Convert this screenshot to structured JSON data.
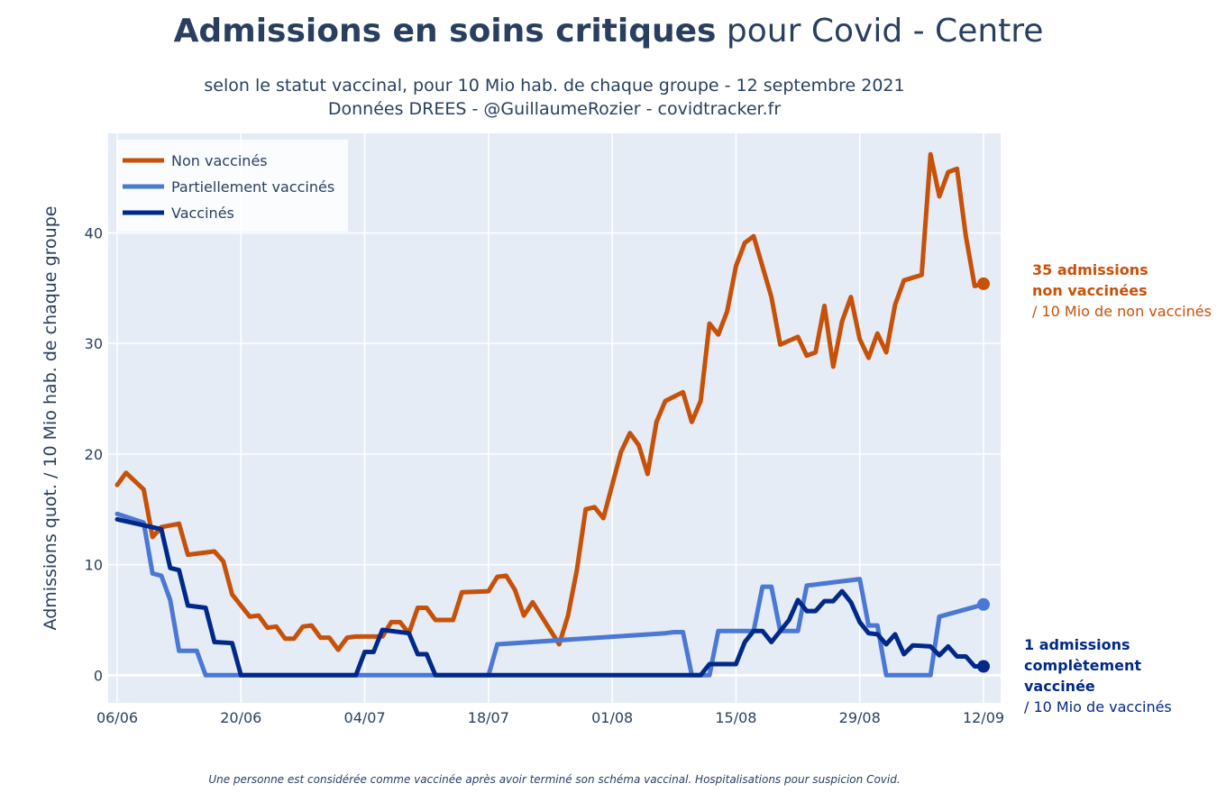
{
  "title": {
    "bold": "Admissions en soins critiques",
    "normal": "pour Covid - Centre"
  },
  "subtitle": [
    "selon le statut vaccinal, pour 10 Mio hab. de chaque groupe - 12 septembre 2021",
    "Données DREES - @GuillaumeRozier - covidtracker.fr"
  ],
  "footnote": "Une personne est considérée comme vaccinée après avoir terminé son schéma vaccinal. Hospitalisations pour suspicion Covid.",
  "annotations": {
    "non_vaccinated": {
      "line1": "35 admissions",
      "line2": "non vaccinées",
      "line3": "/ 10 Mio de non vaccinés"
    },
    "vaccinated": {
      "line1": "1 admissions",
      "line2": "complètement vaccinée",
      "line3": "/ 10 Mio de vaccinés"
    }
  },
  "colors": {
    "non_vaccinated": "#c75109",
    "partial": "#4a78d4",
    "vaccinated": "#00298a",
    "plot_bg": "#e5ecf6",
    "text": "#2a3f5f"
  },
  "chart_data": {
    "type": "line",
    "title": "Admissions en soins critiques pour Covid - Centre",
    "ylabel": "Admissions quot. / 10 Mio hab. de chaque groupe",
    "xlabel": "",
    "ylim": [
      -2.5,
      49
    ],
    "yticks": [
      0,
      10,
      20,
      30,
      40
    ],
    "x_start": "06/06",
    "xticks": [
      "06/06",
      "20/06",
      "04/07",
      "18/07",
      "01/08",
      "15/08",
      "29/08",
      "12/09"
    ],
    "xtick_days": [
      0,
      14,
      28,
      42,
      56,
      70,
      84,
      98
    ],
    "grid": true,
    "legend_position": "top-left",
    "series": [
      {
        "name": "Non vaccinés",
        "color": "#c75109",
        "points": [
          [
            0,
            17.2
          ],
          [
            1,
            18.3
          ],
          [
            3,
            16.8
          ],
          [
            4,
            12.5
          ],
          [
            5,
            13.4
          ],
          [
            7,
            13.7
          ],
          [
            8,
            10.9
          ],
          [
            11,
            11.2
          ],
          [
            12,
            10.3
          ],
          [
            13,
            7.3
          ],
          [
            15,
            5.3
          ],
          [
            16,
            5.4
          ],
          [
            17,
            4.3
          ],
          [
            18,
            4.4
          ],
          [
            19,
            3.3
          ],
          [
            20,
            3.3
          ],
          [
            21,
            4.4
          ],
          [
            22,
            4.5
          ],
          [
            23,
            3.4
          ],
          [
            24,
            3.4
          ],
          [
            25,
            2.3
          ],
          [
            26,
            3.4
          ],
          [
            27,
            3.5
          ],
          [
            30,
            3.5
          ],
          [
            31,
            4.8
          ],
          [
            32,
            4.8
          ],
          [
            33,
            3.8
          ],
          [
            34,
            6.1
          ],
          [
            35,
            6.1
          ],
          [
            36,
            5.0
          ],
          [
            38,
            5.0
          ],
          [
            39,
            7.5
          ],
          [
            42,
            7.6
          ],
          [
            43,
            8.9
          ],
          [
            44,
            9.0
          ],
          [
            45,
            7.7
          ],
          [
            46,
            5.4
          ],
          [
            47,
            6.6
          ],
          [
            50,
            2.8
          ],
          [
            51,
            5.4
          ],
          [
            52,
            9.5
          ],
          [
            53,
            15.0
          ],
          [
            54,
            15.2
          ],
          [
            55,
            14.2
          ],
          [
            56,
            17.2
          ],
          [
            57,
            20.2
          ],
          [
            58,
            21.9
          ],
          [
            59,
            20.8
          ],
          [
            60,
            18.2
          ],
          [
            61,
            22.9
          ],
          [
            62,
            24.8
          ],
          [
            64,
            25.6
          ],
          [
            65,
            22.9
          ],
          [
            66,
            24.8
          ],
          [
            67,
            31.8
          ],
          [
            68,
            30.8
          ],
          [
            69,
            32.9
          ],
          [
            70,
            37.0
          ],
          [
            71,
            39.1
          ],
          [
            72,
            39.7
          ],
          [
            74,
            34.2
          ],
          [
            75,
            29.9
          ],
          [
            77,
            30.6
          ],
          [
            78,
            28.9
          ],
          [
            79,
            29.2
          ],
          [
            80,
            33.4
          ],
          [
            81,
            27.9
          ],
          [
            82,
            32.0
          ],
          [
            83,
            34.2
          ],
          [
            84,
            30.4
          ],
          [
            85,
            28.7
          ],
          [
            86,
            30.9
          ],
          [
            87,
            29.2
          ],
          [
            88,
            33.5
          ],
          [
            89,
            35.7
          ],
          [
            91,
            36.2
          ],
          [
            92,
            47.1
          ],
          [
            93,
            43.3
          ],
          [
            94,
            45.5
          ],
          [
            95,
            45.8
          ],
          [
            96,
            39.7
          ],
          [
            97,
            35.2
          ],
          [
            98,
            35.4
          ]
        ]
      },
      {
        "name": "Partiellement vaccinés",
        "color": "#4a78d4",
        "points": [
          [
            0,
            14.6
          ],
          [
            3,
            13.8
          ],
          [
            4,
            9.2
          ],
          [
            5,
            9.0
          ],
          [
            6,
            6.8
          ],
          [
            7,
            2.2
          ],
          [
            9,
            2.2
          ],
          [
            10,
            0
          ],
          [
            14,
            0
          ],
          [
            42,
            0
          ],
          [
            43,
            2.8
          ],
          [
            62,
            3.8
          ],
          [
            63,
            3.9
          ],
          [
            64,
            3.9
          ],
          [
            65,
            0
          ],
          [
            67,
            0
          ],
          [
            68,
            4.0
          ],
          [
            72,
            4.0
          ],
          [
            73,
            8.0
          ],
          [
            74,
            8.0
          ],
          [
            75,
            4.0
          ],
          [
            77,
            4.0
          ],
          [
            78,
            8.1
          ],
          [
            84,
            8.7
          ],
          [
            85,
            4.5
          ],
          [
            86,
            4.5
          ],
          [
            87,
            0
          ],
          [
            92,
            0
          ],
          [
            93,
            5.3
          ],
          [
            98,
            6.4
          ]
        ]
      },
      {
        "name": "Vaccinés",
        "color": "#00298a",
        "points": [
          [
            0,
            14.1
          ],
          [
            5,
            13.2
          ],
          [
            6,
            9.7
          ],
          [
            7,
            9.5
          ],
          [
            8,
            6.3
          ],
          [
            10,
            6.1
          ],
          [
            11,
            3.0
          ],
          [
            13,
            2.9
          ],
          [
            14,
            0
          ],
          [
            27,
            0
          ],
          [
            28,
            2.1
          ],
          [
            29,
            2.1
          ],
          [
            30,
            4.1
          ],
          [
            33,
            3.8
          ],
          [
            34,
            1.9
          ],
          [
            35,
            1.9
          ],
          [
            36,
            0
          ],
          [
            66,
            0
          ],
          [
            67,
            1.0
          ],
          [
            70,
            1.0
          ],
          [
            71,
            3.0
          ],
          [
            72,
            4.0
          ],
          [
            73,
            4.0
          ],
          [
            74,
            3.0
          ],
          [
            76,
            5.0
          ],
          [
            77,
            6.8
          ],
          [
            78,
            5.8
          ],
          [
            79,
            5.8
          ],
          [
            80,
            6.7
          ],
          [
            81,
            6.7
          ],
          [
            82,
            7.6
          ],
          [
            83,
            6.6
          ],
          [
            84,
            4.8
          ],
          [
            85,
            3.8
          ],
          [
            86,
            3.7
          ],
          [
            87,
            2.8
          ],
          [
            88,
            3.7
          ],
          [
            89,
            1.9
          ],
          [
            90,
            2.7
          ],
          [
            92,
            2.6
          ],
          [
            93,
            1.8
          ],
          [
            94,
            2.6
          ],
          [
            95,
            1.7
          ],
          [
            96,
            1.7
          ],
          [
            97,
            0.8
          ],
          [
            98,
            0.8
          ]
        ]
      }
    ]
  }
}
